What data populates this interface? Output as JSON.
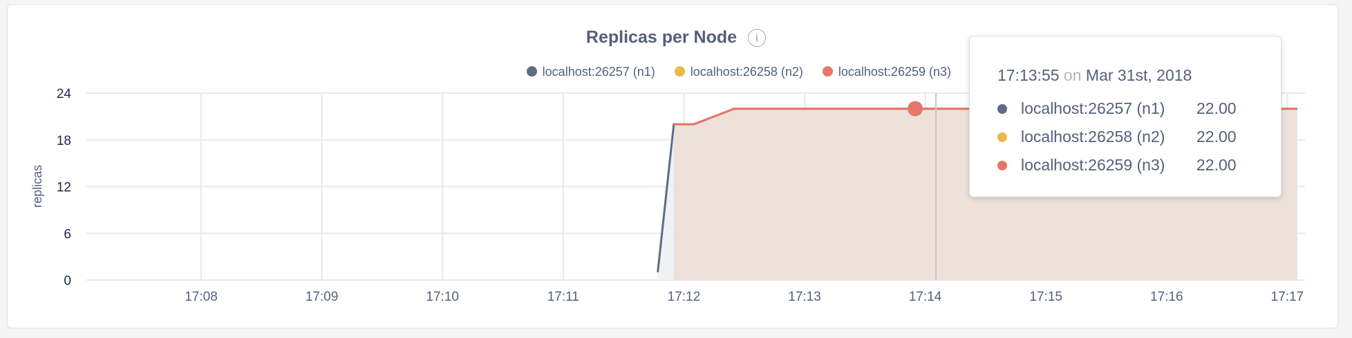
{
  "chart_data": {
    "type": "area",
    "title": "Replicas per Node",
    "ylabel": "replicas",
    "xlabel": "",
    "ylim": [
      0,
      24
    ],
    "yticks": [
      "0",
      "6",
      "12",
      "18",
      "24"
    ],
    "xticks": [
      "17:08",
      "17:09",
      "17:10",
      "17:11",
      "17:12",
      "17:13",
      "17:14",
      "17:15",
      "17:16",
      "17:17"
    ],
    "grid": true,
    "legend_position": "top-right",
    "series": [
      {
        "name": "localhost:26257 (n1)",
        "color": "#5f6a87",
        "points": [
          [
            "17:11:47",
            1
          ],
          [
            "17:11:55",
            20
          ],
          [
            "17:12:05",
            20
          ],
          [
            "17:12:25",
            22
          ],
          [
            "17:17:05",
            22
          ]
        ]
      },
      {
        "name": "localhost:26258 (n2)",
        "color": "#e9b94b",
        "points": [
          [
            "17:11:55",
            20
          ],
          [
            "17:12:05",
            20
          ],
          [
            "17:12:25",
            22
          ],
          [
            "17:17:05",
            22
          ]
        ]
      },
      {
        "name": "localhost:26259 (n3)",
        "color": "#e5766a",
        "points": [
          [
            "17:11:55",
            20
          ],
          [
            "17:12:05",
            20
          ],
          [
            "17:12:25",
            22
          ],
          [
            "17:17:05",
            22
          ]
        ]
      }
    ],
    "hover": {
      "time": "17:13:55"
    }
  },
  "tooltip": {
    "time": "17:13:55",
    "on": "on",
    "date": "Mar 31st, 2018",
    "rows": [
      {
        "label": "localhost:26257 (n1)",
        "value": "22.00"
      },
      {
        "label": "localhost:26258 (n2)",
        "value": "22.00"
      },
      {
        "label": "localhost:26259 (n3)",
        "value": "22.00"
      }
    ]
  },
  "info_icon": "i"
}
